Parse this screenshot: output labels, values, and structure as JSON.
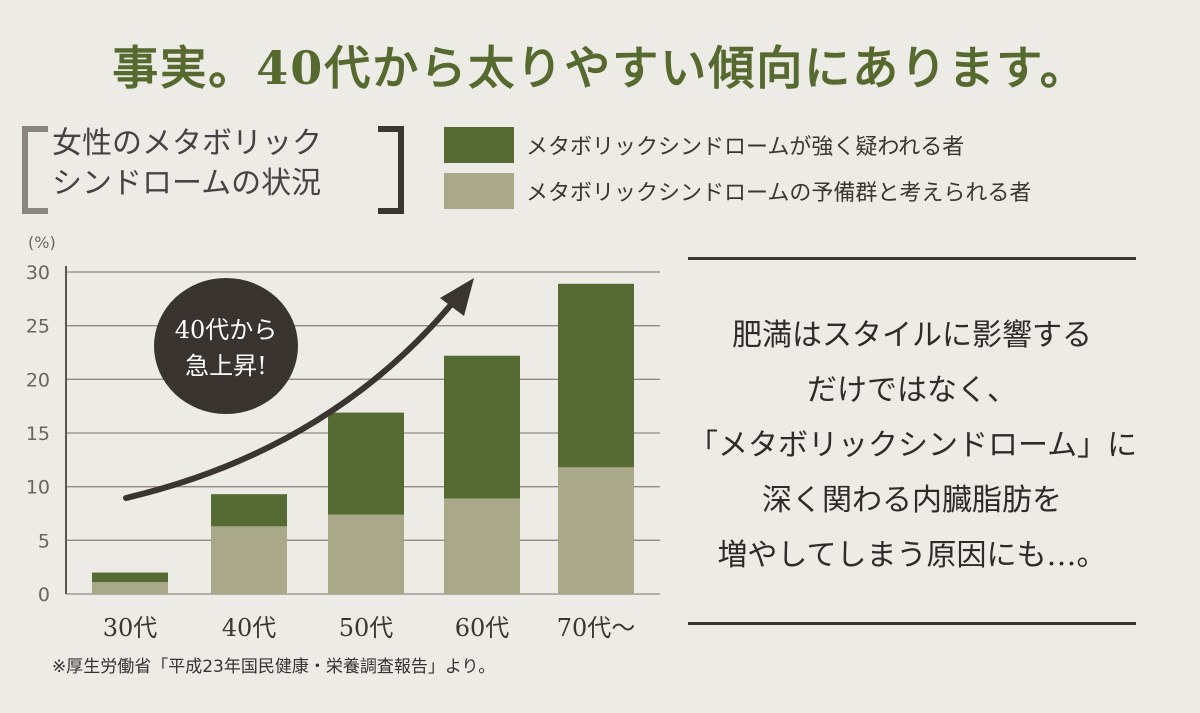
{
  "headline": "事実。40代から太りやすい傾向にあります。",
  "chart_data": {
    "type": "bar",
    "stacked": true,
    "title_lines": [
      "女性のメタボリック",
      "シンドロームの状況"
    ],
    "ylabel": "(%)",
    "ylim": [
      0,
      30
    ],
    "yticks": [
      0,
      5,
      10,
      15,
      20,
      25,
      30
    ],
    "categories": [
      "30代",
      "40代",
      "50代",
      "60代",
      "70代〜"
    ],
    "series": [
      {
        "name": "メタボリックシンドロームの予備群と考えられる者",
        "color": "#a9a98a",
        "values": [
          1.1,
          6.3,
          7.4,
          8.9,
          11.8
        ]
      },
      {
        "name": "メタボリックシンドロームが強く疑われる者",
        "color": "#556b33",
        "values": [
          0.9,
          3.0,
          9.5,
          13.3,
          17.1
        ]
      }
    ],
    "annotation": {
      "lines": [
        "40代から",
        "急上昇!"
      ]
    }
  },
  "message": {
    "lines": [
      "肥満はスタイルに影響する",
      "だけではなく、",
      "「メタボリックシンドローム」に",
      "深く関わる内臓脂肪を",
      "増やしてしまう原因にも…。"
    ]
  },
  "footnote": "※厚生労働省「平成23年国民健康・栄養調査報告」より。"
}
